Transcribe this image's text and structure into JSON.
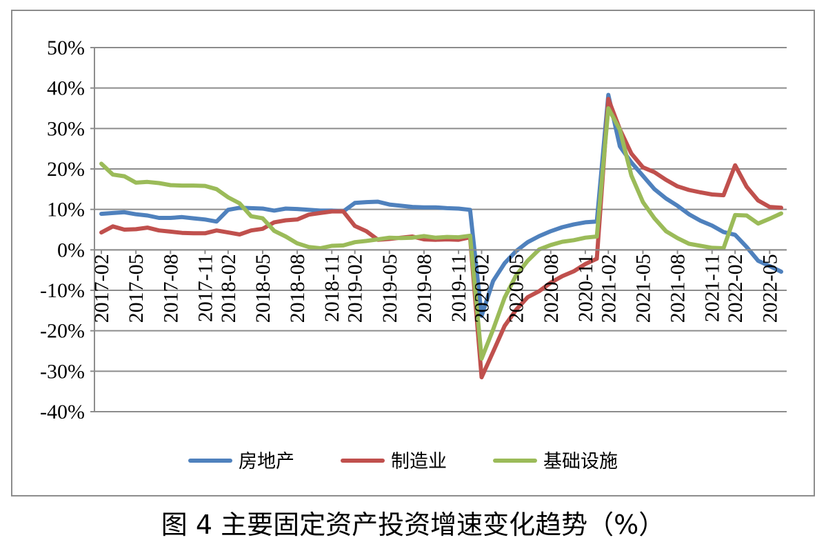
{
  "caption": "图 4  主要固定资产投资增速变化趋势（%）",
  "chart_data": {
    "type": "line",
    "title": "",
    "xlabel": "",
    "ylabel": "",
    "ylim": [
      -40,
      50
    ],
    "yticks": [
      50,
      40,
      30,
      20,
      10,
      0,
      -10,
      -20,
      -30,
      -40
    ],
    "ytick_labels": [
      "50%",
      "40%",
      "30%",
      "20%",
      "10%",
      "0%",
      "-10%",
      "-20%",
      "-30%",
      "-40%"
    ],
    "grid": true,
    "legend_position": "bottom",
    "x": [
      "2017-02",
      "2017-03",
      "2017-04",
      "2017-05",
      "2017-06",
      "2017-07",
      "2017-08",
      "2017-09",
      "2017-10",
      "2017-11",
      "2017-12",
      "2018-02",
      "2018-03",
      "2018-04",
      "2018-05",
      "2018-06",
      "2018-07",
      "2018-08",
      "2018-09",
      "2018-10",
      "2018-11",
      "2018-12",
      "2019-02",
      "2019-03",
      "2019-04",
      "2019-05",
      "2019-06",
      "2019-07",
      "2019-08",
      "2019-09",
      "2019-10",
      "2019-11",
      "2019-12",
      "2020-02",
      "2020-03",
      "2020-04",
      "2020-05",
      "2020-06",
      "2020-07",
      "2020-08",
      "2020-09",
      "2020-10",
      "2020-11",
      "2020-12",
      "2021-02",
      "2021-03",
      "2021-04",
      "2021-05",
      "2021-06",
      "2021-07",
      "2021-08",
      "2021-09",
      "2021-10",
      "2021-11",
      "2021-12",
      "2022-02",
      "2022-03",
      "2022-04",
      "2022-05",
      "2022-06"
    ],
    "tick_labels": [
      "2017-02",
      "2017-05",
      "2017-08",
      "2017-11",
      "2018-02",
      "2018-05",
      "2018-08",
      "2018-11",
      "2019-02",
      "2019-05",
      "2019-08",
      "2019-11",
      "2020-02",
      "2020-05",
      "2020-08",
      "2020-11",
      "2021-02",
      "2021-05",
      "2021-08",
      "2021-11",
      "2022-02",
      "2022-05"
    ],
    "series": [
      {
        "name": "房地产",
        "color": "#4f81bd",
        "values": [
          8.9,
          9.1,
          9.3,
          8.8,
          8.5,
          7.9,
          7.9,
          8.1,
          7.8,
          7.5,
          7.0,
          9.9,
          10.4,
          10.3,
          10.2,
          9.7,
          10.2,
          10.1,
          9.9,
          9.7,
          9.7,
          9.5,
          11.6,
          11.8,
          11.9,
          11.2,
          10.9,
          10.6,
          10.5,
          10.5,
          10.3,
          10.2,
          9.9,
          -16.3,
          -7.7,
          -3.3,
          -0.3,
          1.9,
          3.4,
          4.6,
          5.6,
          6.3,
          6.8,
          7.0,
          38.3,
          25.6,
          21.6,
          18.3,
          15.0,
          12.7,
          10.9,
          8.8,
          7.2,
          6.0,
          4.4,
          3.7,
          0.7,
          -2.7,
          -4.0,
          -5.4
        ]
      },
      {
        "name": "制造业",
        "color": "#c0504d",
        "values": [
          4.3,
          5.8,
          5.0,
          5.1,
          5.5,
          4.8,
          4.5,
          4.2,
          4.1,
          4.1,
          4.8,
          4.3,
          3.8,
          4.8,
          5.2,
          6.8,
          7.3,
          7.5,
          8.7,
          9.1,
          9.5,
          9.5,
          5.9,
          4.6,
          2.5,
          2.7,
          3.0,
          3.3,
          2.6,
          2.5,
          2.6,
          2.5,
          3.1,
          -31.5,
          -25.2,
          -18.8,
          -14.8,
          -11.7,
          -10.2,
          -8.1,
          -6.5,
          -5.3,
          -3.5,
          -2.2,
          37.3,
          29.8,
          23.8,
          20.4,
          19.2,
          17.3,
          15.7,
          14.8,
          14.2,
          13.7,
          13.5,
          20.9,
          15.6,
          12.2,
          10.6,
          10.4
        ]
      },
      {
        "name": "基础设施",
        "color": "#9bbb59",
        "values": [
          21.3,
          18.6,
          18.2,
          16.6,
          16.8,
          16.5,
          16.0,
          15.9,
          15.9,
          15.8,
          15.0,
          13.0,
          11.5,
          8.3,
          7.8,
          4.7,
          3.3,
          1.6,
          0.7,
          0.4,
          1.0,
          1.1,
          1.9,
          2.2,
          2.6,
          3.0,
          2.9,
          3.0,
          3.4,
          3.0,
          3.2,
          3.1,
          3.5,
          -26.9,
          -19.7,
          -11.8,
          -6.3,
          -2.7,
          0.1,
          1.2,
          2.0,
          2.4,
          3.0,
          3.3,
          35.0,
          29.7,
          18.4,
          11.8,
          7.8,
          4.6,
          2.9,
          1.5,
          1.0,
          0.5,
          0.4,
          8.6,
          8.5,
          6.5,
          7.7,
          9.0
        ]
      }
    ]
  }
}
